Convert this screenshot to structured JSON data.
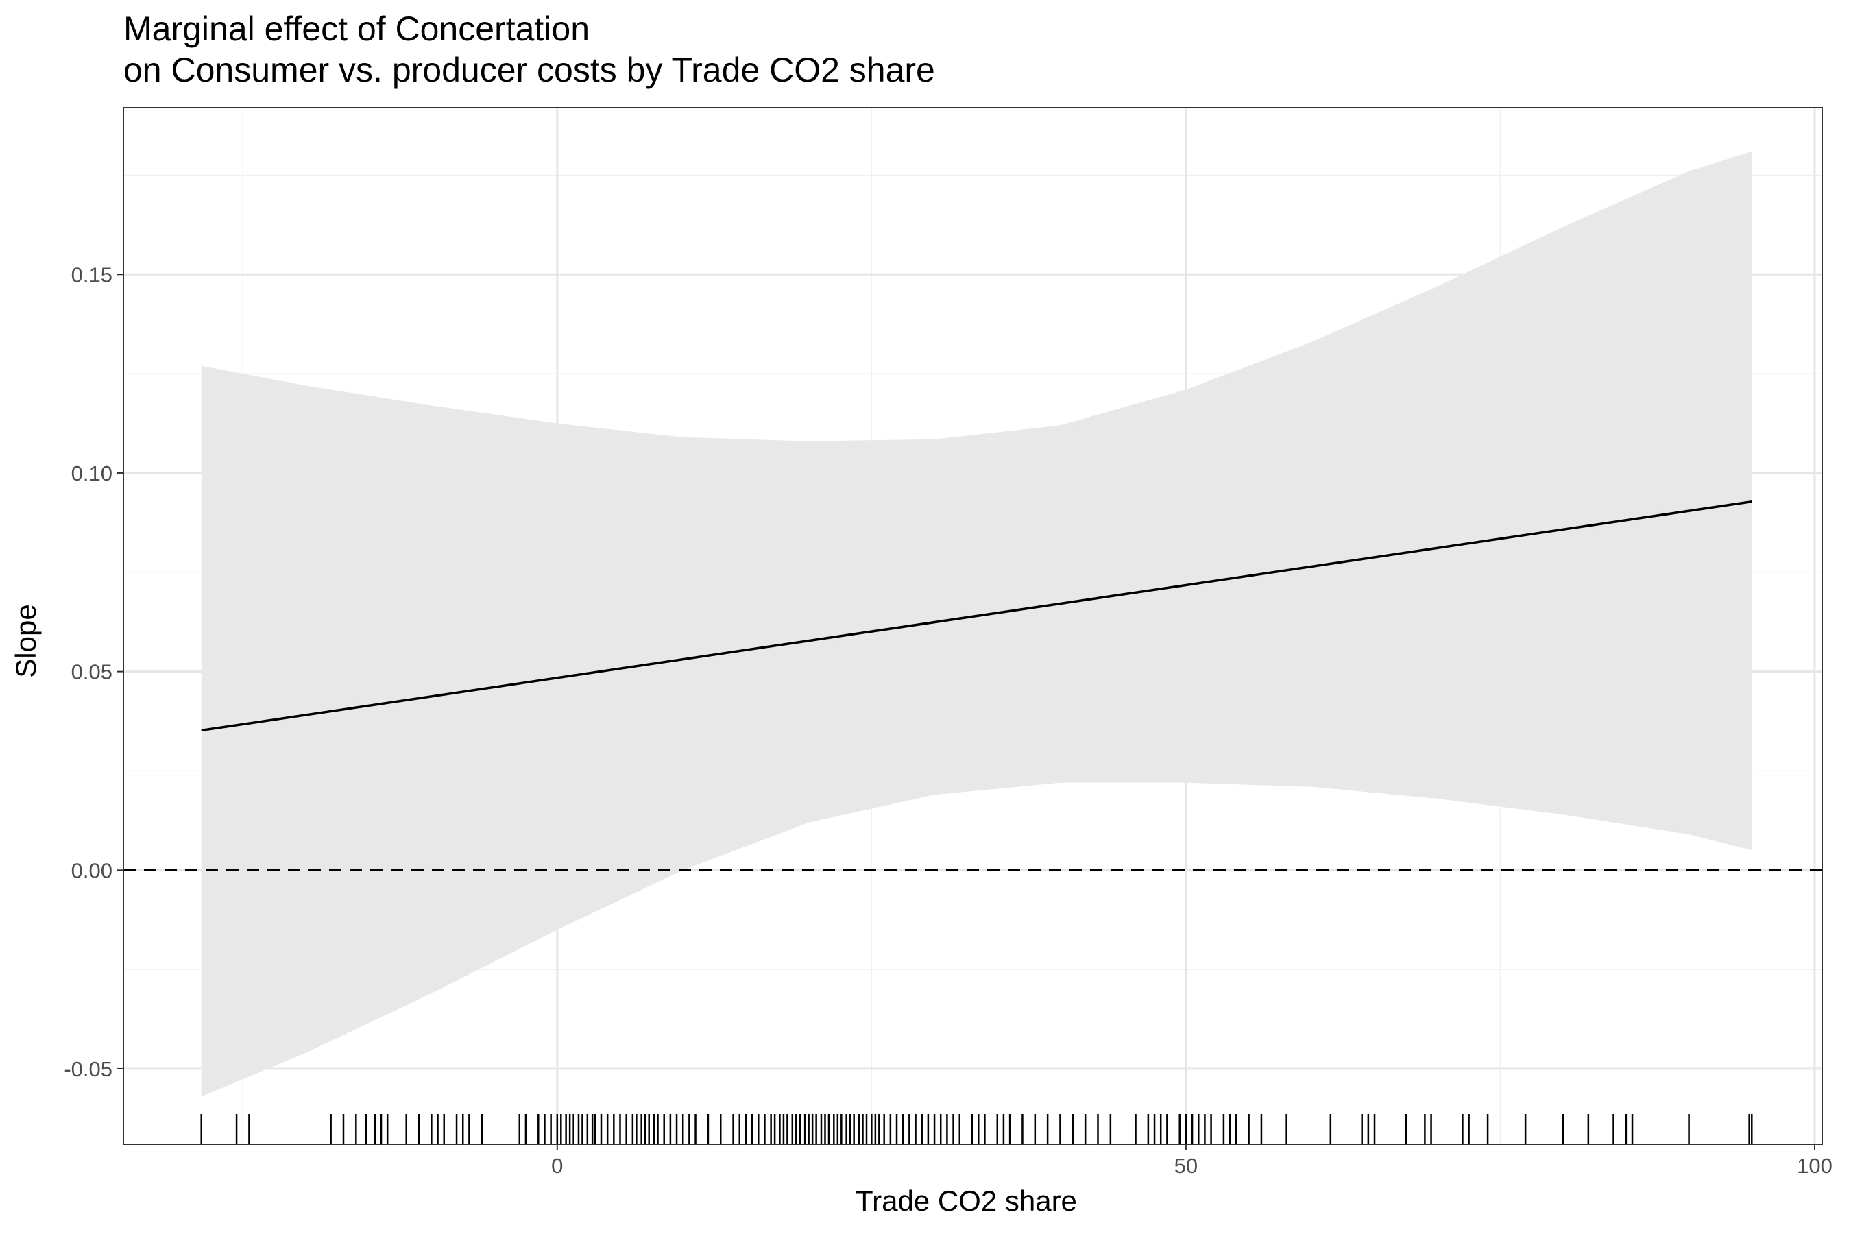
{
  "chart_data": {
    "type": "line",
    "title": "Marginal effect of Concertation",
    "subtitle": "on Consumer vs. producer costs by Trade CO2 share",
    "xlabel": "Trade CO2 share",
    "ylabel": "Slope",
    "xlim": [
      -34.5,
      100.6
    ],
    "ylim": [
      -0.069,
      0.192
    ],
    "x_ticks": [
      0,
      50,
      100
    ],
    "x_tick_labels": [
      "0",
      "50",
      "100"
    ],
    "y_ticks": [
      -0.05,
      0.0,
      0.05,
      0.1,
      0.15
    ],
    "y_tick_labels": [
      "-0.05",
      "0.00",
      "0.05",
      "0.10",
      "0.15"
    ],
    "grid": true,
    "reference_line": {
      "y": 0,
      "style": "dashed"
    },
    "series": [
      {
        "type": "line",
        "x": [
          -28.3,
          95
        ],
        "y": [
          0.0352,
          0.0928
        ]
      }
    ],
    "confidence_band": {
      "x": [
        -28.3,
        -20,
        -10,
        0,
        10,
        20,
        30,
        40,
        50,
        60,
        70,
        80,
        90,
        95
      ],
      "lower": [
        -0.057,
        -0.046,
        -0.031,
        -0.015,
        0.0,
        0.012,
        0.019,
        0.022,
        0.022,
        0.021,
        0.018,
        0.014,
        0.009,
        0.005
      ],
      "upper": [
        0.127,
        0.122,
        0.117,
        0.1125,
        0.109,
        0.108,
        0.1085,
        0.112,
        0.121,
        0.133,
        0.147,
        0.162,
        0.176,
        0.181
      ]
    },
    "rug_x": [
      -28.3,
      -25.5,
      -24.5,
      -18,
      -17,
      -16,
      -15.2,
      -14.5,
      -14,
      -13.5,
      -12,
      -11,
      -10,
      -9.5,
      -9,
      -8,
      -7.5,
      -7,
      -6,
      -3,
      -2.5,
      -1.5,
      -1,
      -0.5,
      0,
      0.3,
      0.7,
      1,
      1.3,
      1.7,
      2,
      2.4,
      2.8,
      3,
      3.5,
      4,
      4.5,
      5,
      5.5,
      6,
      6.3,
      6.7,
      7,
      7.3,
      7.7,
      8,
      8.5,
      9,
      9.5,
      10,
      10.5,
      11,
      12,
      13,
      14,
      14.5,
      15,
      15.5,
      16,
      16.5,
      17,
      17.3,
      17.7,
      18,
      18.3,
      18.7,
      19,
      19.3,
      19.7,
      20,
      20.3,
      20.6,
      21,
      21.3,
      21.6,
      22,
      22.3,
      22.6,
      23,
      23.3,
      23.6,
      24,
      24.3,
      24.6,
      25,
      25.3,
      25.6,
      26,
      26.5,
      27,
      27.5,
      28,
      28.5,
      29,
      29.5,
      30,
      30.5,
      31,
      31.5,
      32,
      33,
      33.5,
      34,
      35,
      35.5,
      36,
      37,
      38,
      39,
      40,
      41,
      42,
      43,
      44,
      46,
      47,
      47.5,
      48,
      48.5,
      49.5,
      50,
      50.5,
      51,
      51.5,
      52,
      53,
      53.5,
      54,
      55,
      56,
      58,
      61.5,
      64,
      64.5,
      65,
      67.5,
      69,
      69.5,
      72,
      72.5,
      74,
      77,
      80,
      82,
      84,
      85,
      85.5,
      90,
      94.8,
      95
    ]
  }
}
